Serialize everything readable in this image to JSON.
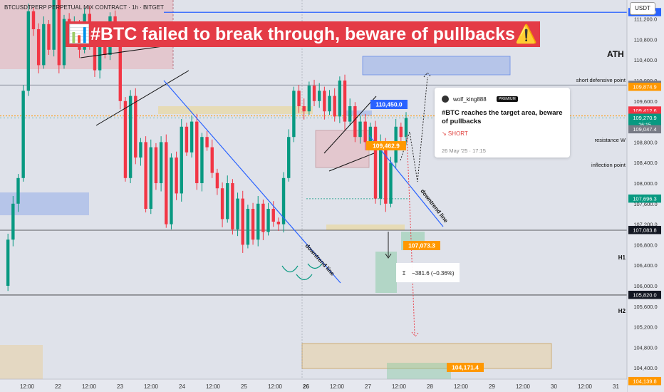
{
  "header": {
    "symbol": "BTCUSDTPERP PERPETUAL MIX CONTRACT · 1h · BITGET",
    "headline": "📊#BTC failed to break through, beware of pullbacks⚠️",
    "currency": "USDT"
  },
  "idea": {
    "author": "wolf_king888",
    "badge": "PREMIUM",
    "title": "#BTC reaches the target area, beware of pullbacks",
    "direction": "↘ SHORT",
    "timestamp": "26 May '25 · 17:15"
  },
  "chart_data": {
    "type": "candlestick",
    "timeframe": "1h",
    "y_axis": {
      "ticks": [
        112800,
        112400,
        112000,
        111600,
        111200,
        110800,
        110400,
        110000,
        109600,
        109200,
        108800,
        108400,
        108000,
        107600,
        107200,
        106800,
        106400,
        106000,
        105600,
        105200,
        104800,
        104400
      ],
      "range": [
        104000,
        113200
      ]
    },
    "x_axis": {
      "ticks": [
        "12:00",
        "22",
        "12:00",
        "23",
        "12:00",
        "24",
        "12:00",
        "25",
        "12:00",
        "26",
        "12:00",
        "27",
        "12:00",
        "28",
        "12:00",
        "29",
        "12:00",
        "30",
        "12:00",
        "31"
      ]
    },
    "ohlc_path": [
      106000,
      106900,
      107600,
      108100,
      109800,
      111350,
      111000,
      110300,
      111100,
      110600,
      111700,
      110300,
      111200,
      110800,
      111100,
      110600,
      111300,
      110700,
      110200,
      110900,
      110500,
      111250,
      110800,
      109600,
      108100,
      109700,
      108500,
      108800,
      107500,
      108700,
      108000,
      108800,
      107200,
      108500,
      107800,
      109100,
      108600,
      109200,
      108000,
      108900,
      108700,
      108200,
      107900,
      107300,
      108000,
      107100,
      107700,
      106800,
      107500,
      106900,
      107600,
      107050,
      107500,
      107250,
      107200,
      108100,
      108900,
      109800,
      109500,
      109400,
      109900,
      109600,
      109800,
      109400,
      109700,
      109300,
      110000,
      109200,
      109500,
      108900,
      109200,
      108800,
      109100,
      107700,
      108800,
      107600,
      108400,
      109100,
      108900,
      109270
    ],
    "annotations": {
      "ath_label": "ATH",
      "ath_value": 111950,
      "short_defensive_label": "short defensive point",
      "short_defensive_value": 111330,
      "resistance_label": "resistance W",
      "resistance_value": 109874.9,
      "inflection_label": "inflection point",
      "inflection_value": 109310.7,
      "h1_label": "H1",
      "h1_value": 107083.8,
      "h2_label": "H2",
      "h2_value": 105820,
      "target_high_label": "110,450.0",
      "entry_label": "109,462.9",
      "target_low_label": "107,073.3",
      "bottom_label": "104,171.4",
      "measure_label": "−381.6 (−0.36%)",
      "downtrend_label": "downtrend line"
    },
    "price_tags": [
      {
        "text": "111,950.0",
        "value": 111950,
        "color": "#2962ff"
      },
      {
        "text": "111,330.0",
        "value": 111330,
        "color": "#2962ff"
      },
      {
        "text": "109,911.8",
        "value": 109911.8,
        "color": "#787b86"
      },
      {
        "text": "109,874.9",
        "value": 109874.9,
        "color": "#ff9800"
      },
      {
        "text": "109,412.6",
        "value": 109412.6,
        "color": "#f23645"
      },
      {
        "text": "109,310.7",
        "value": 109310.7,
        "color": "#f23645"
      },
      {
        "text": "109,270.9",
        "value": 109270.9,
        "color": "#089981",
        "sub": "26:15"
      },
      {
        "text": "109,047.4",
        "value": 109047.4,
        "color": "#787b86"
      },
      {
        "text": "107,696.3",
        "value": 107696.3,
        "color": "#089981"
      },
      {
        "text": "107,083.8",
        "value": 107083.8,
        "color": "#131722"
      },
      {
        "text": "105,820.0",
        "value": 105820,
        "color": "#131722"
      },
      {
        "text": "104,139.8",
        "value": 104139.8,
        "color": "#ff9800"
      }
    ],
    "colors": {
      "up": "#089981",
      "down": "#f23645",
      "line": "#2962ff",
      "background": "#dfe2ea"
    }
  }
}
